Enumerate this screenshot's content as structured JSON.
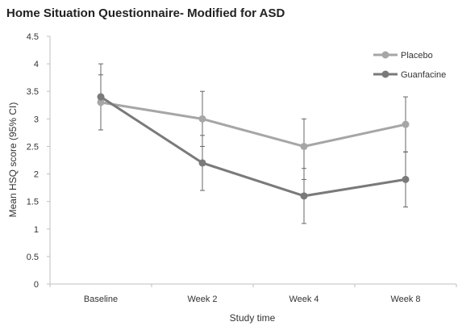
{
  "chart_data": {
    "type": "line",
    "title": "Home Situation Questionnaire- Modified for ASD",
    "xlabel": "Study time",
    "ylabel": "Mean HSQ score (95% CI)",
    "categories": [
      "Baseline",
      "Week 2",
      "Week 4",
      "Week 8"
    ],
    "ylim": [
      0,
      4.5
    ],
    "yticks": [
      "0",
      "0.5",
      "1",
      "1.5",
      "2",
      "2.5",
      "3",
      "3.5",
      "4",
      "4.5"
    ],
    "grid": false,
    "legend_position": "top-right",
    "error_bars": "95% CI",
    "series": [
      {
        "name": "Placebo",
        "color": "#a6a6a6",
        "values": [
          3.3,
          3.0,
          2.5,
          2.9
        ],
        "ci_low": [
          2.8,
          2.5,
          1.9,
          2.4
        ],
        "ci_high": [
          3.8,
          3.5,
          3.0,
          3.4
        ]
      },
      {
        "name": "Guanfacine",
        "color": "#7a7a7a",
        "values": [
          3.4,
          2.2,
          1.6,
          1.9
        ],
        "ci_low": [
          2.8,
          1.7,
          1.1,
          1.4
        ],
        "ci_high": [
          4.0,
          2.7,
          2.1,
          2.4
        ]
      }
    ]
  }
}
